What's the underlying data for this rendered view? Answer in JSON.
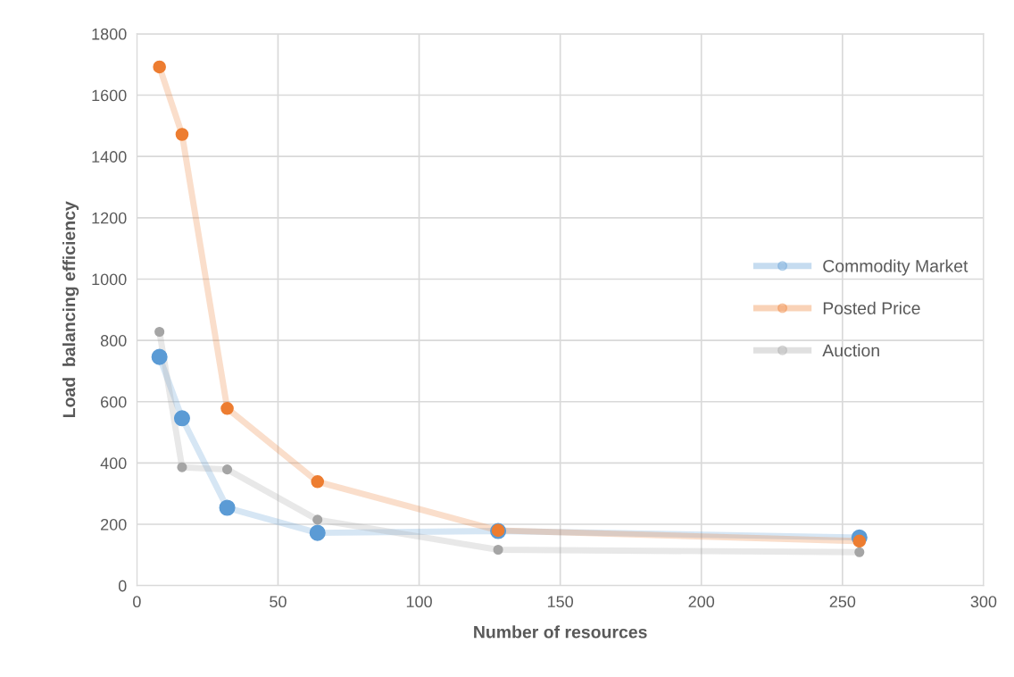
{
  "chart_data": {
    "type": "line",
    "xlabel": "Number of resources",
    "ylabel": "Load  balancing efficiency",
    "x": [
      8,
      16,
      32,
      64,
      128,
      256
    ],
    "series": [
      {
        "name": "Commodity Market",
        "color": "#5b9bd5",
        "values": [
          746,
          546,
          254,
          172,
          178,
          157
        ]
      },
      {
        "name": "Posted Price",
        "color": "#ed7d31",
        "values": [
          1692,
          1472,
          578,
          339,
          180,
          145
        ]
      },
      {
        "name": "Auction",
        "color": "#a5a5a5",
        "values": [
          828,
          386,
          379,
          215,
          117,
          109
        ]
      }
    ],
    "xlim": [
      0,
      300
    ],
    "xticks": [
      0,
      50,
      100,
      150,
      200,
      250,
      300
    ],
    "ylim": [
      0,
      1800
    ],
    "yticks": [
      0,
      200,
      400,
      600,
      800,
      1000,
      1200,
      1400,
      1600,
      1800
    ],
    "grid": true,
    "legend": "right",
    "marker": "circle",
    "line_style": "solid"
  }
}
